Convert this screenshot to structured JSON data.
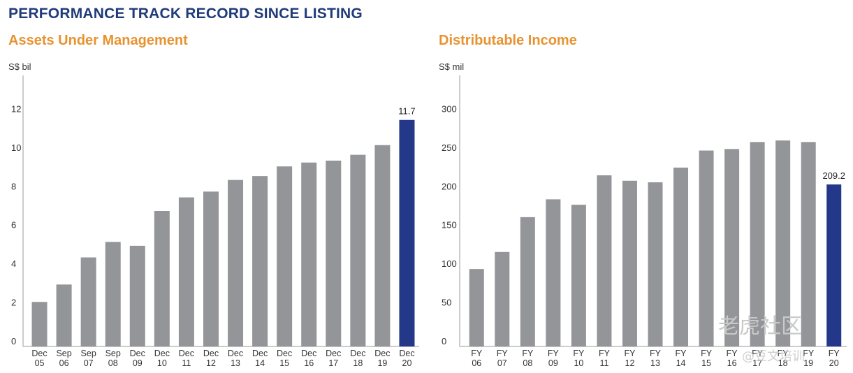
{
  "page_title": "PERFORMANCE TRACK RECORD SINCE LISTING",
  "colors": {
    "title": "#1f3b7a",
    "subtitle": "#e8922f",
    "bar": "#939598",
    "highlight": "#24388a",
    "axis": "#999999"
  },
  "watermark": {
    "brand": "老虎社区",
    "handle": "@豆文培训"
  },
  "chart_data": [
    {
      "type": "bar",
      "title": "Assets Under Management",
      "ylabel": "S$ bil",
      "xlabel": "",
      "ylim": [
        0,
        14
      ],
      "yticks": [
        0,
        2,
        4,
        6,
        8,
        10,
        12
      ],
      "categories": [
        [
          "Dec",
          "05"
        ],
        [
          "Sep",
          "06"
        ],
        [
          "Sep",
          "07"
        ],
        [
          "Sep",
          "08"
        ],
        [
          "Dec",
          "09"
        ],
        [
          "Dec",
          "10"
        ],
        [
          "Dec",
          "11"
        ],
        [
          "Dec",
          "12"
        ],
        [
          "Dec",
          "13"
        ],
        [
          "Dec",
          "14"
        ],
        [
          "Dec",
          "15"
        ],
        [
          "Dec",
          "16"
        ],
        [
          "Dec",
          "17"
        ],
        [
          "Dec",
          "18"
        ],
        [
          "Dec",
          "19"
        ],
        [
          "Dec",
          "20"
        ]
      ],
      "values": [
        2.3,
        3.2,
        4.6,
        5.4,
        5.2,
        7.0,
        7.7,
        8.0,
        8.6,
        8.8,
        9.3,
        9.5,
        9.6,
        9.9,
        10.4,
        11.7
      ],
      "highlight_index": 15,
      "data_labels": {
        "15": "11.7"
      }
    },
    {
      "type": "bar",
      "title": "Distributable Income",
      "ylabel": "S$ mil",
      "xlabel": "",
      "ylim": [
        0,
        350
      ],
      "yticks": [
        0,
        50,
        100,
        150,
        200,
        250,
        300
      ],
      "categories": [
        [
          "FY",
          "06"
        ],
        [
          "FY",
          "07"
        ],
        [
          "FY",
          "08"
        ],
        [
          "FY",
          "09"
        ],
        [
          "FY",
          "10"
        ],
        [
          "FY",
          "11"
        ],
        [
          "FY",
          "12"
        ],
        [
          "FY",
          "13"
        ],
        [
          "FY",
          "14"
        ],
        [
          "FY",
          "15"
        ],
        [
          "FY",
          "16"
        ],
        [
          "FY",
          "17"
        ],
        [
          "FY",
          "18"
        ],
        [
          "FY",
          "19"
        ],
        [
          "FY",
          "20"
        ]
      ],
      "values": [
        100,
        122,
        167,
        190,
        183,
        221,
        214,
        212,
        231,
        253,
        255,
        264,
        266,
        264,
        209.2
      ],
      "highlight_index": 14,
      "data_labels": {
        "14": "209.2"
      }
    }
  ]
}
